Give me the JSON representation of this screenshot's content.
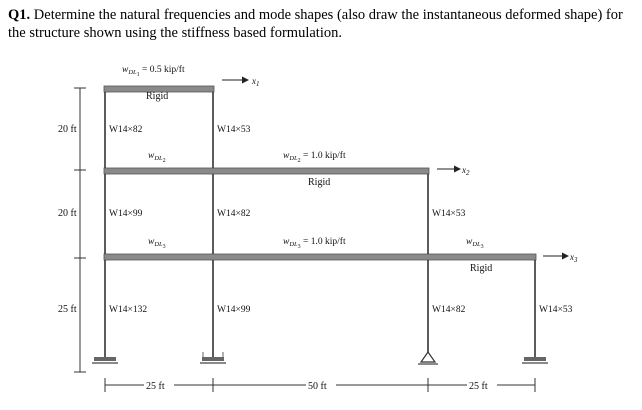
{
  "question": {
    "number": "Q1.",
    "text": "Determine the natural frequencies and mode shapes (also draw the instantaneous deformed shape) for the structure shown using the stiffness based formulation."
  },
  "figure": {
    "loads": {
      "top": "w",
      "top_sub": "DL",
      "top_sub_num": "1",
      "top_value": " = 0.5 kip/ft",
      "mid_left": "w",
      "mid_left_sub": "DL",
      "mid_left_sub_num": "2",
      "mid_right": "w",
      "mid_right_sub": "DL",
      "mid_right_sub_num": "2",
      "mid_right_value": " = 1.0 kip/ft",
      "low_left": "w",
      "low_left_sub": "DL",
      "low_left_sub_num": "3",
      "low_mid": "w",
      "low_mid_sub": "DL",
      "low_mid_sub_num": "3",
      "low_mid_value": " = 1.0 kip/ft",
      "low_right": "w",
      "low_right_sub": "DL",
      "low_right_sub_num": "3"
    },
    "rigid_labels": [
      "Rigid",
      "Rigid",
      "Rigid"
    ],
    "dofs": {
      "x1": "x",
      "x1_sub": "1",
      "x2": "x",
      "x2_sub": "2",
      "x3": "x",
      "x3_sub": "3"
    },
    "story_heights": [
      "20 ft",
      "20 ft",
      "25 ft"
    ],
    "columns": {
      "top_left": "W14×82",
      "top_right": "W14×53",
      "mid_left": "W14×99",
      "mid_center": "W14×82",
      "mid_right": "W14×53",
      "low_left": "W14×132",
      "low_center": "W14×99",
      "low_right": "W14×82",
      "low_far_right": "W14×53"
    },
    "spans": [
      "25 ft",
      "50 ft",
      "25 ft"
    ]
  }
}
